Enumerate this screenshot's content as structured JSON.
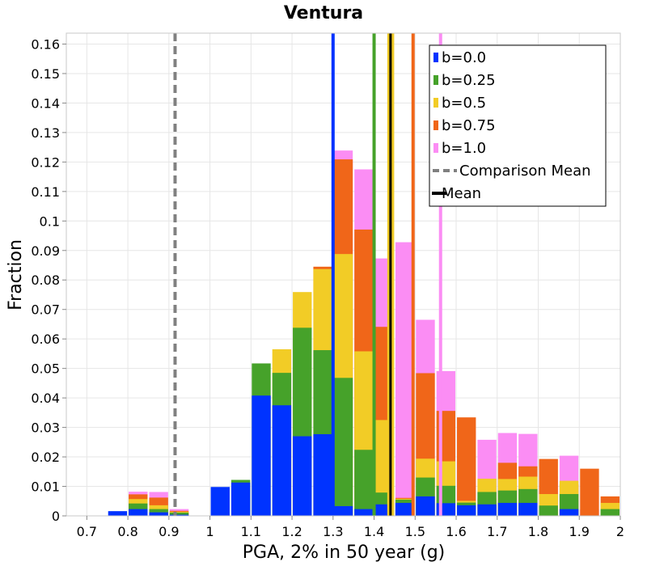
{
  "chart_data": {
    "type": "bar",
    "title": "Ventura",
    "xlabel": "PGA, 2% in 50 year (g)",
    "ylabel": "Fraction",
    "xlim": [
      0.65,
      2.0
    ],
    "ylim": [
      0,
      0.1637
    ],
    "x_ticks": [
      "0.7",
      "0.8",
      "0.9",
      "1",
      "1.1",
      "1.2",
      "1.3",
      "1.4",
      "1.5",
      "1.6",
      "1.7",
      "1.8",
      "1.9",
      "2"
    ],
    "y_ticks": [
      "0",
      "0.01",
      "0.02",
      "0.03",
      "0.04",
      "0.05",
      "0.06",
      "0.07",
      "0.08",
      "0.09",
      "0.1",
      "0.11",
      "0.12",
      "0.13",
      "0.14",
      "0.15",
      "0.16"
    ],
    "bin_width": 0.05,
    "grid": true,
    "legend_position": "top-right",
    "series": [
      {
        "name": "b=0.0",
        "color": "#0033ff",
        "bins": [
          [
            0.75,
            0.0016
          ],
          [
            0.8,
            0.0023
          ],
          [
            0.85,
            0.0012
          ],
          [
            0.9,
            0.0004
          ],
          [
            1.0,
            0.0098
          ],
          [
            1.05,
            0.0113
          ],
          [
            1.1,
            0.0408
          ],
          [
            1.15,
            0.0375
          ],
          [
            1.2,
            0.027
          ],
          [
            1.25,
            0.0277
          ],
          [
            1.3,
            0.0033
          ],
          [
            1.35,
            0.0023
          ],
          [
            1.4,
            0.0039
          ],
          [
            1.45,
            0.0044
          ],
          [
            1.5,
            0.0066
          ],
          [
            1.55,
            0.0043
          ],
          [
            1.6,
            0.0036
          ],
          [
            1.65,
            0.0039
          ],
          [
            1.7,
            0.0044
          ],
          [
            1.75,
            0.0044
          ],
          [
            1.85,
            0.0023
          ]
        ]
      },
      {
        "name": "b=0.25",
        "color": "#46a22a",
        "bins": [
          [
            0.8,
            0.0042
          ],
          [
            0.85,
            0.0023
          ],
          [
            0.9,
            0.0011
          ],
          [
            1.05,
            0.0122
          ],
          [
            1.1,
            0.0517
          ],
          [
            1.15,
            0.0485
          ],
          [
            1.2,
            0.0638
          ],
          [
            1.25,
            0.0562
          ],
          [
            1.3,
            0.0468
          ],
          [
            1.35,
            0.0224
          ],
          [
            1.4,
            0.0079
          ],
          [
            1.45,
            0.0055
          ],
          [
            1.5,
            0.013
          ],
          [
            1.55,
            0.0102
          ],
          [
            1.6,
            0.0045
          ],
          [
            1.65,
            0.0081
          ],
          [
            1.7,
            0.0086
          ],
          [
            1.75,
            0.0091
          ],
          [
            1.8,
            0.0035
          ],
          [
            1.85,
            0.0074
          ],
          [
            1.95,
            0.0023
          ]
        ]
      },
      {
        "name": "b=0.5",
        "color": "#f2cc26",
        "bins": [
          [
            0.8,
            0.0057
          ],
          [
            0.85,
            0.0036
          ],
          [
            0.9,
            0.0014
          ],
          [
            1.15,
            0.0565
          ],
          [
            1.2,
            0.0759
          ],
          [
            1.25,
            0.0837
          ],
          [
            1.3,
            0.0888
          ],
          [
            1.35,
            0.0558
          ],
          [
            1.4,
            0.0325
          ],
          [
            1.45,
            0.0058
          ],
          [
            1.5,
            0.0194
          ],
          [
            1.55,
            0.0185
          ],
          [
            1.6,
            0.0051
          ],
          [
            1.65,
            0.0126
          ],
          [
            1.7,
            0.0125
          ],
          [
            1.75,
            0.0133
          ],
          [
            1.8,
            0.0074
          ],
          [
            1.85,
            0.0119
          ],
          [
            1.95,
            0.0044
          ]
        ]
      },
      {
        "name": "b=0.75",
        "color": "#f06619",
        "bins": [
          [
            0.8,
            0.0073
          ],
          [
            0.85,
            0.0062
          ],
          [
            0.9,
            0.0017
          ],
          [
            1.25,
            0.0845
          ],
          [
            1.3,
            0.1209
          ],
          [
            1.35,
            0.0971
          ],
          [
            1.4,
            0.0641
          ],
          [
            1.45,
            0.0061
          ],
          [
            1.5,
            0.0484
          ],
          [
            1.55,
            0.0356
          ],
          [
            1.6,
            0.0334
          ],
          [
            1.65,
            0.0059
          ],
          [
            1.7,
            0.018
          ],
          [
            1.75,
            0.0168
          ],
          [
            1.8,
            0.0193
          ],
          [
            1.85,
            0.0107
          ],
          [
            1.9,
            0.016
          ],
          [
            1.95,
            0.0066
          ]
        ]
      },
      {
        "name": "b=1.0",
        "color": "#fb8df4",
        "bins": [
          [
            0.8,
            0.0082
          ],
          [
            0.85,
            0.0081
          ],
          [
            0.9,
            0.0023
          ],
          [
            1.3,
            0.1239
          ],
          [
            1.35,
            0.1175
          ],
          [
            1.4,
            0.0873
          ],
          [
            1.45,
            0.0928
          ],
          [
            1.5,
            0.0665
          ],
          [
            1.55,
            0.0491
          ],
          [
            1.6,
            0.0289
          ],
          [
            1.65,
            0.0258
          ],
          [
            1.7,
            0.0281
          ],
          [
            1.75,
            0.0278
          ],
          [
            1.8,
            0.0134
          ],
          [
            1.85,
            0.0204
          ],
          [
            1.9,
            0.0022
          ]
        ]
      }
    ],
    "series_means": [
      1.3,
      1.4,
      1.445,
      1.495,
      1.562
    ],
    "comparison_mean": {
      "name": "Comparison Mean",
      "x": 0.915,
      "color": "#808080"
    },
    "mean": {
      "name": "Mean",
      "x": 1.44,
      "color": "#000000"
    }
  }
}
